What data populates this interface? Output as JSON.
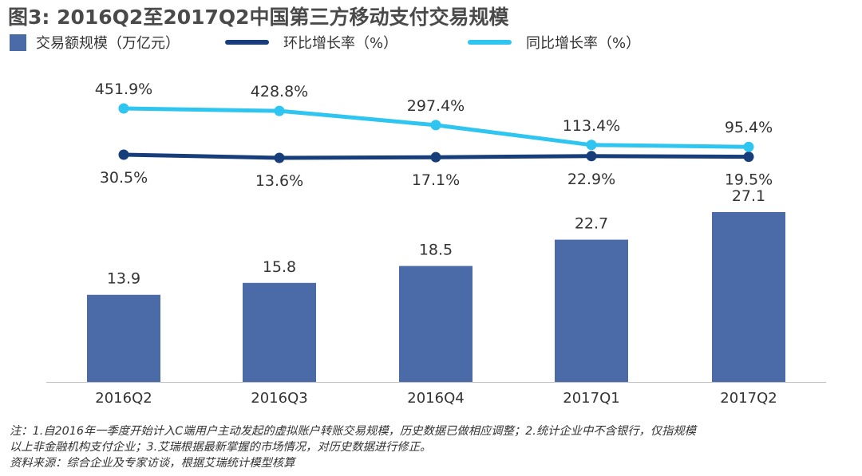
{
  "title": "图3: 2016Q2至2017Q2中国第三方移动支付交易规模",
  "chart_data": {
    "type": "bar",
    "categories": [
      "2016Q2",
      "2016Q3",
      "2016Q4",
      "2017Q1",
      "2017Q2"
    ],
    "series": [
      {
        "name": "交易额规模（万亿元）",
        "type": "bar",
        "values": [
          13.9,
          15.8,
          18.5,
          22.7,
          27.1
        ],
        "labels": [
          "13.9",
          "15.8",
          "18.5",
          "22.7",
          "27.1"
        ],
        "color": "#4a6ba8"
      },
      {
        "name": "环比增长率（%）",
        "type": "line",
        "values": [
          30.5,
          13.6,
          17.1,
          22.9,
          19.5
        ],
        "labels": [
          "30.5%",
          "13.6%",
          "17.1%",
          "22.9%",
          "19.5%"
        ],
        "color": "#173e7a"
      },
      {
        "name": "同比增长率（%）",
        "type": "line",
        "values": [
          451.9,
          428.8,
          297.4,
          113.4,
          95.4
        ],
        "labels": [
          "451.9%",
          "428.8%",
          "297.4%",
          "113.4%",
          "95.4%"
        ],
        "color": "#2ec5f0"
      }
    ],
    "legend_position": "top-left",
    "grid": false
  },
  "footnote": {
    "line1": "注：1.自2016年一季度开始计入C端用户主动发起的虚拟账户转账交易规模，历史数据已做相应调整；2.统计企业中不含银行，仅指规模",
    "line2": "以上非金融机构支付企业；3.艾瑞根据最新掌握的市场情况，对历史数据进行修正。",
    "source": "资料来源：综合企业及专家访谈，根据艾瑞统计模型核算"
  }
}
